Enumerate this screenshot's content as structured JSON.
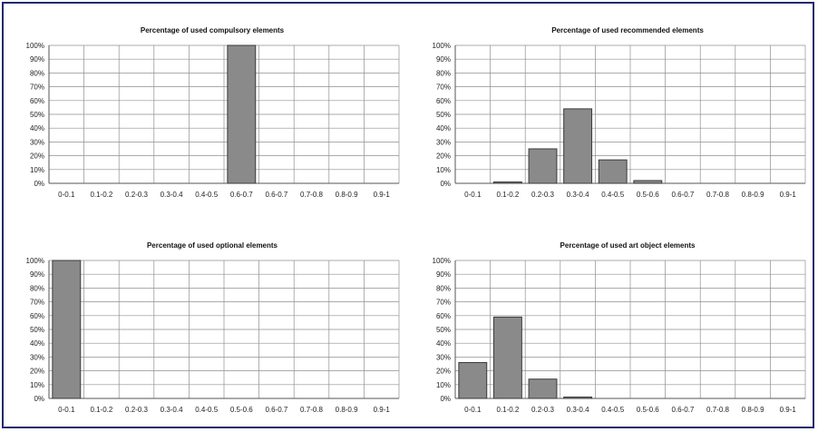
{
  "chart_data": [
    {
      "type": "bar",
      "title": "Percentage of used compulsory elements",
      "categories": [
        "0-0.1",
        "0.1-0.2",
        "0.2-0.3",
        "0.3-0.4",
        "0.4-0.5",
        "0.6-0.7",
        "0.6-0.7",
        "0.7-0.8",
        "0.8-0.9",
        "0.9-1"
      ],
      "values": [
        0,
        0,
        0,
        0,
        0,
        100,
        0,
        0,
        0,
        0
      ],
      "y_ticks": [
        "0%",
        "10%",
        "20%",
        "30%",
        "40%",
        "50%",
        "60%",
        "70%",
        "80%",
        "90%",
        "100%"
      ],
      "ylim": [
        0,
        100
      ],
      "grid": true
    },
    {
      "type": "bar",
      "title": "Percentage of used recommended elements",
      "categories": [
        "0-0.1",
        "0.1-0.2",
        "0.2-0.3",
        "0.3-0.4",
        "0.4-0.5",
        "0.5-0.6",
        "0.6-0.7",
        "0.7-0.8",
        "0.8-0.9",
        "0.9-1"
      ],
      "values": [
        0,
        1,
        25,
        54,
        17,
        2,
        0,
        0,
        0,
        0
      ],
      "y_ticks": [
        "0%",
        "10%",
        "20%",
        "30%",
        "40%",
        "50%",
        "60%",
        "70%",
        "80%",
        "90%",
        "100%"
      ],
      "ylim": [
        0,
        100
      ],
      "grid": true
    },
    {
      "type": "bar",
      "title": "Percentage of used optional elements",
      "categories": [
        "0-0.1",
        "0.1-0.2",
        "0.2-0.3",
        "0.3-0.4",
        "0.4-0.5",
        "0.5-0.6",
        "0.6-0.7",
        "0.7-0.8",
        "0.8-0.9",
        "0.9-1"
      ],
      "values": [
        100,
        0,
        0,
        0,
        0,
        0,
        0,
        0,
        0,
        0
      ],
      "y_ticks": [
        "0%",
        "10%",
        "20%",
        "30%",
        "40%",
        "50%",
        "60%",
        "70%",
        "80%",
        "90%",
        "100%"
      ],
      "ylim": [
        0,
        100
      ],
      "grid": true
    },
    {
      "type": "bar",
      "title": "Percentage of used art object elements",
      "categories": [
        "0-0.1",
        "0.1-0.2",
        "0.2-0.3",
        "0.3-0.4",
        "0.4-0.5",
        "0.5-0.6",
        "0.6-0.7",
        "0.7-0.8",
        "0.8-0.9",
        "0.9-1"
      ],
      "values": [
        26,
        59,
        14,
        1,
        0,
        0,
        0,
        0,
        0,
        0
      ],
      "y_ticks": [
        "0%",
        "10%",
        "20%",
        "30%",
        "40%",
        "50%",
        "60%",
        "70%",
        "80%",
        "90%",
        "100%"
      ],
      "ylim": [
        0,
        100
      ],
      "grid": true
    }
  ]
}
